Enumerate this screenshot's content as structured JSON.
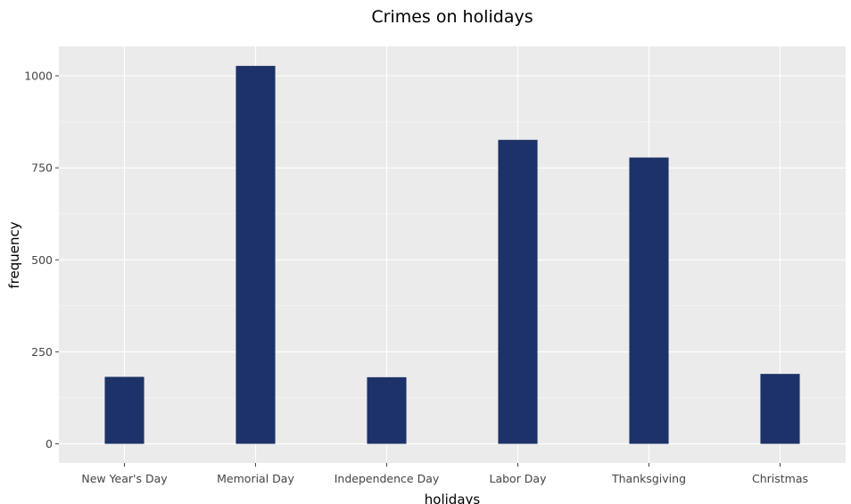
{
  "chart_data": {
    "type": "bar",
    "title": "Crimes on holidays",
    "xlabel": "holidays",
    "ylabel": "frequency",
    "categories": [
      "New Year's Day",
      "Memorial Day",
      "Independence Day",
      "Labor Day",
      "Thanksgiving",
      "Christmas"
    ],
    "values": [
      182,
      1027,
      181,
      826,
      778,
      190
    ],
    "ylim": [
      -52,
      1080
    ],
    "yticks": [
      0,
      250,
      500,
      750,
      1000
    ],
    "ytick_labels": [
      "0",
      "250",
      "500",
      "750",
      "1000"
    ],
    "bar_color": "#1c3268",
    "panel_color": "#ebebeb",
    "grid": true,
    "legend": "none"
  }
}
